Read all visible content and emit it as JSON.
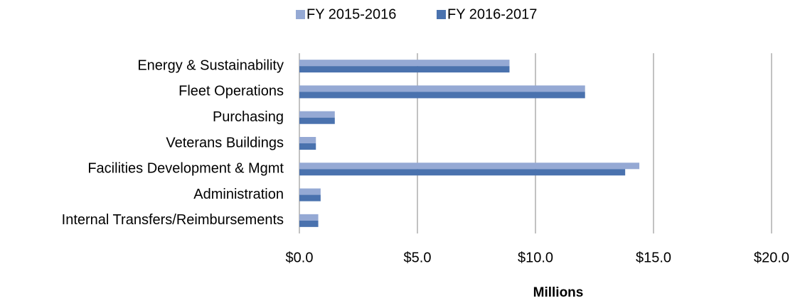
{
  "chart_data": {
    "type": "bar",
    "orientation": "horizontal",
    "x_label": "Millions",
    "categories": [
      "Energy & Sustainability",
      "Fleet Operations",
      "Purchasing",
      "Veterans Buildings",
      "Facilities Development & Mgmt",
      "Administration",
      "Internal Transfers/Reimbursements"
    ],
    "series": [
      {
        "name": "FY 2015-2016",
        "color": "#95a9d4",
        "values": [
          8.9,
          12.1,
          1.5,
          0.7,
          14.4,
          0.9,
          0.8
        ]
      },
      {
        "name": "FY 2016-2017",
        "color": "#4a72ae",
        "values": [
          8.9,
          12.1,
          1.5,
          0.7,
          13.8,
          0.9,
          0.8
        ]
      }
    ],
    "xlim": [
      0,
      20
    ],
    "xticks": [
      {
        "value": 0,
        "label": "$0.0"
      },
      {
        "value": 5,
        "label": "$5.0"
      },
      {
        "value": 10,
        "label": "$10.0"
      },
      {
        "value": 15,
        "label": "$15.0"
      },
      {
        "value": 20,
        "label": "$20.0"
      }
    ],
    "grid": true,
    "legend": "top"
  }
}
